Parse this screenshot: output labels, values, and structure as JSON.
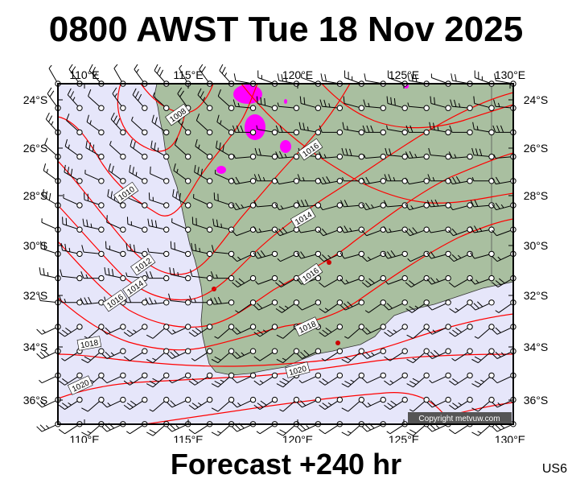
{
  "header": {
    "title": "0800 AWST Tue 18 Nov 2025"
  },
  "footer": {
    "forecast": "Forecast +240 hr",
    "model_code": "US6"
  },
  "copyright": "Copyright metvuw.com",
  "axes": {
    "lon_labels": [
      "110°E",
      "115°E",
      "120°E",
      "125°E",
      "130°E"
    ],
    "lat_labels": [
      "24°S",
      "26°S",
      "28°S",
      "30°S",
      "32°S",
      "34°S",
      "36°S"
    ]
  },
  "isobar_labels": [
    "1008",
    "1010",
    "1012",
    "1014",
    "1016",
    "1018",
    "1020",
    "1014",
    "1016",
    "1016",
    "1018",
    "1020"
  ],
  "colors": {
    "sea": "#e6e6fa",
    "land": "#a9bfa0",
    "isobar": "#ff0000",
    "rain": "#ff00ff"
  }
}
